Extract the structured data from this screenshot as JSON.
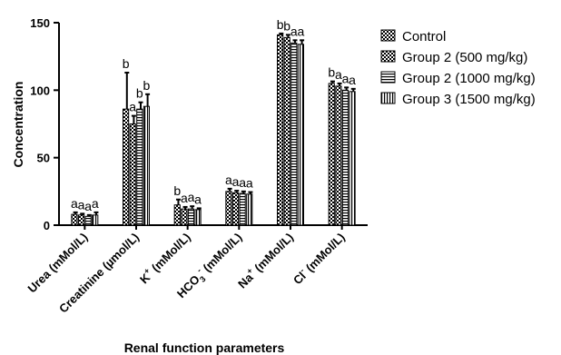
{
  "chart_data": {
    "type": "bar",
    "title": "",
    "xlabel": "Renal function parameters",
    "ylabel": "Concentration",
    "ylim": [
      0,
      150
    ],
    "yticks": [
      "0",
      "50",
      "100",
      "150"
    ],
    "grid": false,
    "legend_position": "top-right",
    "categories": [
      {
        "base": "Urea (mMol/L)",
        "sup": ""
      },
      {
        "base": "Creatinine (µmol/L)",
        "sup": ""
      },
      {
        "base": "K",
        "sup": "+",
        "rest": " (mMol/L)"
      },
      {
        "base": "HCO",
        "sub": "3",
        "sup": "-",
        "rest": " (mMol/L)"
      },
      {
        "base": "Na",
        "sup": "+",
        "rest": "  (mMol/L)"
      },
      {
        "base": "Cl",
        "sup": "-",
        "rest": " (mMol/L)"
      }
    ],
    "series": [
      {
        "name": "Control",
        "pattern": "checker",
        "values": [
          8,
          86,
          15,
          25,
          141,
          105
        ],
        "errors": [
          1.5,
          27,
          4,
          2,
          1,
          1.5
        ],
        "labels": [
          "a",
          "b",
          "b",
          "a",
          "b",
          "b"
        ]
      },
      {
        "name": "Group 2 (500 mg/kg)",
        "pattern": "crosshatch",
        "values": [
          7.5,
          75,
          12,
          24,
          139,
          103
        ],
        "errors": [
          1,
          6,
          1.5,
          1.5,
          2,
          2
        ],
        "labels": [
          "a",
          "a",
          "a",
          "a",
          "b",
          "a"
        ]
      },
      {
        "name": "Group 2 (1000 mg/kg)",
        "pattern": "hlines",
        "values": [
          6.5,
          86,
          12,
          23.5,
          135,
          100
        ],
        "errors": [
          1,
          5,
          2,
          1.5,
          2,
          2
        ],
        "labels": [
          "a",
          "b",
          "a",
          "a",
          "a",
          "a"
        ]
      },
      {
        "name": "Group 3 (1500 mg/kg)",
        "pattern": "vlines",
        "values": [
          7.5,
          88,
          11.5,
          23,
          134,
          99
        ],
        "errors": [
          2,
          9,
          1,
          1.5,
          3,
          2
        ],
        "labels": [
          "a",
          "b",
          "a",
          "a",
          "a",
          "a"
        ]
      }
    ]
  }
}
